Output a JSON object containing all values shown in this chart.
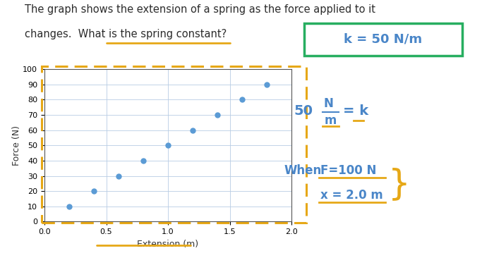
{
  "title_line1": "The graph shows the extension of a spring as the force applied to it",
  "title_line2": "changes.  What is the spring constant?",
  "xlabel": "Extension (m)",
  "ylabel": "Force (N)",
  "xlim": [
    0.0,
    2.0
  ],
  "ylim": [
    0,
    100
  ],
  "xticks": [
    0.0,
    0.5,
    1.0,
    1.5,
    2.0
  ],
  "yticks": [
    0,
    10,
    20,
    30,
    40,
    50,
    60,
    70,
    80,
    90,
    100
  ],
  "data_x": [
    0.2,
    0.4,
    0.6,
    0.8,
    1.0,
    1.2,
    1.4,
    1.6,
    1.8
  ],
  "data_y": [
    10,
    20,
    30,
    40,
    50,
    60,
    70,
    80,
    90
  ],
  "dot_color": "#5b9bd5",
  "dot_size": 25,
  "background_color": "#ffffff",
  "plot_bg_color": "#ffffff",
  "grid_color": "#b8cce4",
  "dashed_rect_color": "#e6a817",
  "answer_box_color": "#27ae60",
  "answer_text": "k = 50 N/m",
  "title_underline_color": "#e6a817",
  "text_color_main": "#2c2c2c",
  "text_color_blue": "#4a86c8"
}
